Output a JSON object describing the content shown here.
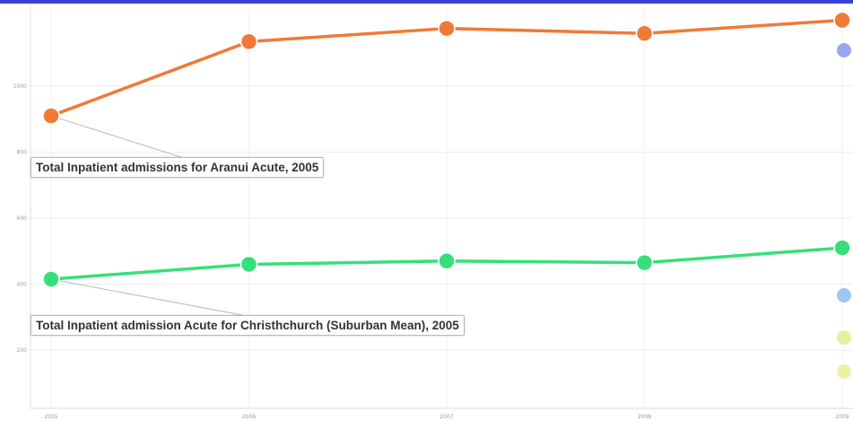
{
  "chart_data": {
    "type": "line",
    "x": [
      "2005",
      "2006",
      "2007",
      "2008",
      "2009"
    ],
    "yticks": [
      "1000",
      "800",
      "600",
      "400",
      "200"
    ],
    "ylim": [
      0,
      1200
    ],
    "grid": true,
    "series": [
      {
        "name": "Total Inpatient admissions for Aranui Acute",
        "color": "#f07a35",
        "values": [
          910,
          1135,
          1175,
          1160,
          1200
        ]
      },
      {
        "name": "Total Inpatient admission Acute for Christhchurch (Suburban Mean)",
        "color": "#35e07a",
        "values": [
          415,
          460,
          470,
          465,
          510
        ]
      }
    ],
    "annotations": [
      {
        "series": 0,
        "point": 0,
        "text": "Total Inpatient admissions for Aranui Acute, 2005"
      },
      {
        "series": 1,
        "point": 0,
        "text": "Total Inpatient admission Acute for Christhchurch (Suburban Mean), 2005"
      }
    ],
    "legend_markers": [
      "#9aa5f0",
      "#9ec6f0",
      "#e4f0a0",
      "#eef0a8"
    ],
    "legend": "right"
  }
}
